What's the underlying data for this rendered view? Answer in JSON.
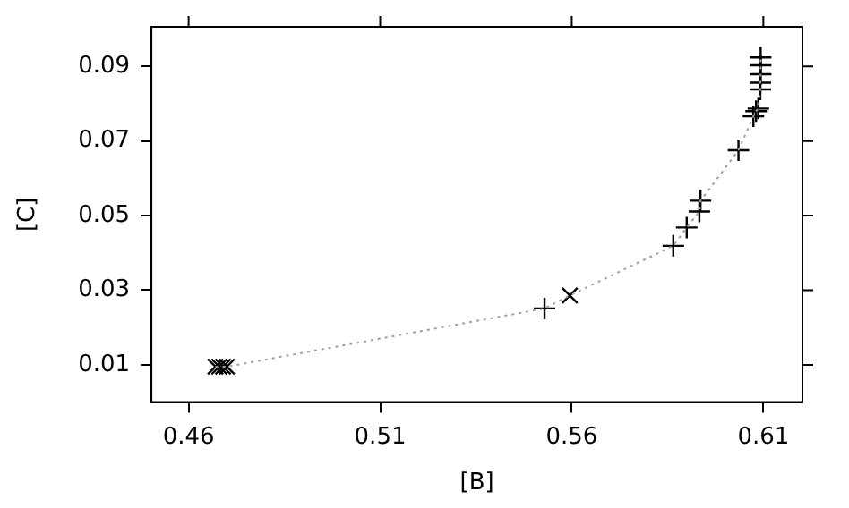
{
  "chart_data": {
    "type": "scatter",
    "xlabel": "[B]",
    "ylabel": "[C]",
    "xlim": [
      0.4503,
      0.6202
    ],
    "xticks": [
      0.46,
      0.51,
      0.56,
      0.61
    ],
    "ylim": [
      0,
      0.1006
    ],
    "yticks": [
      0.01,
      0.03,
      0.05,
      0.07,
      0.09
    ],
    "grid": false,
    "legend": false,
    "series": [
      {
        "type": "line",
        "color": "#a0a0a0",
        "line_style": "dotted",
        "marker": "none",
        "x": [
          0.467,
          0.468,
          0.469,
          0.47,
          0.5529,
          0.5595,
          0.5865,
          0.59,
          0.5933,
          0.5936,
          0.6035,
          0.6074,
          0.6081,
          0.6087,
          0.6092,
          0.6092,
          0.6093,
          0.6093,
          0.6093
        ],
        "values": [
          0.0095,
          0.0095,
          0.0095,
          0.0095,
          0.0251,
          0.0286,
          0.0419,
          0.0468,
          0.0511,
          0.054,
          0.0675,
          0.0766,
          0.078,
          0.0787,
          0.0838,
          0.0856,
          0.0879,
          0.0903,
          0.0924
        ]
      },
      {
        "type": "scatter",
        "color": "#000000",
        "marker": "x",
        "x": [
          0.467,
          0.468,
          0.469,
          0.47,
          0.5595
        ],
        "values": [
          0.0095,
          0.0095,
          0.0095,
          0.0095,
          0.0286
        ]
      },
      {
        "type": "scatter",
        "color": "#000000",
        "marker": "cross",
        "x": [
          0.5529,
          0.5865,
          0.59,
          0.5933,
          0.5936,
          0.6035,
          0.6074,
          0.6081,
          0.6087,
          0.6092,
          0.6092,
          0.6093,
          0.6093,
          0.6093
        ],
        "values": [
          0.0251,
          0.0419,
          0.0468,
          0.0511,
          0.054,
          0.0675,
          0.0766,
          0.078,
          0.0787,
          0.0838,
          0.0856,
          0.0879,
          0.0903,
          0.0924
        ]
      }
    ]
  }
}
